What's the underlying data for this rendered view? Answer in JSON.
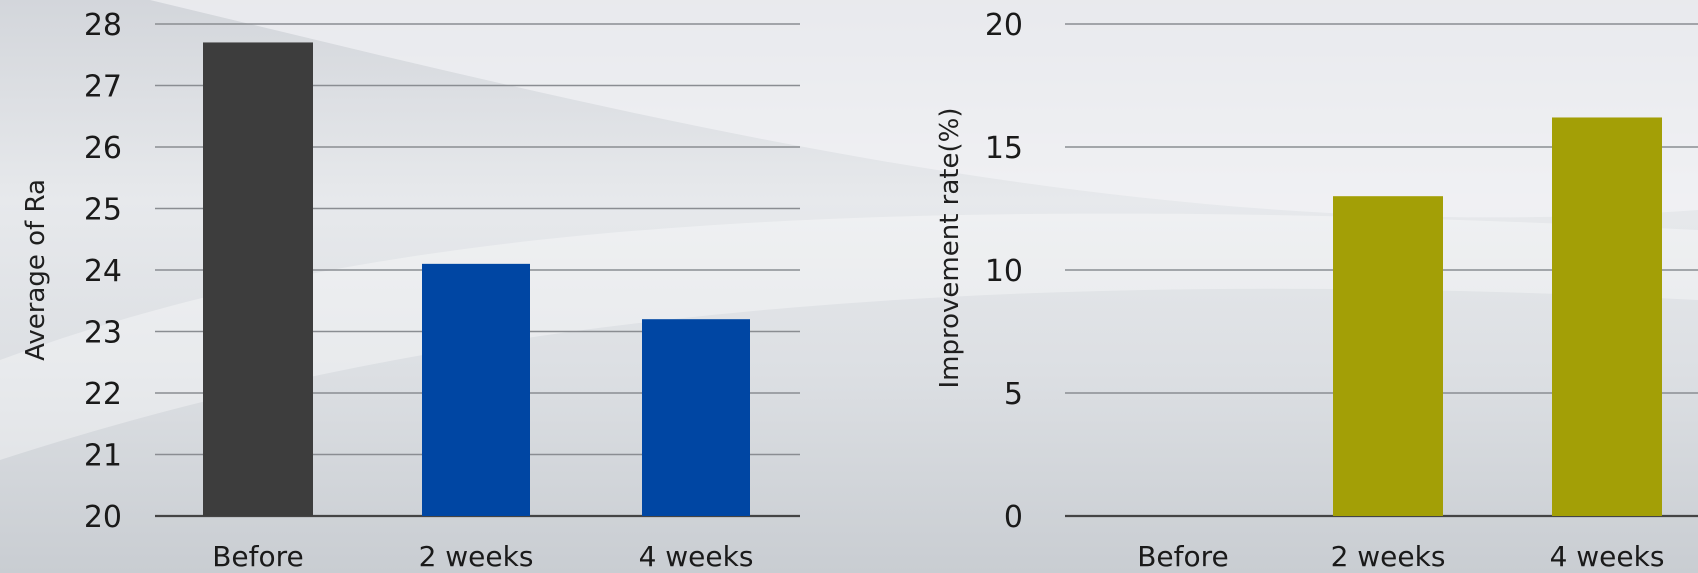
{
  "chart_data": [
    {
      "type": "bar",
      "title": "",
      "xlabel": "",
      "ylabel": "Average of Ra",
      "categories": [
        "Before",
        "2 weeks",
        "4 weeks"
      ],
      "values": [
        27.7,
        24.1,
        23.2
      ],
      "colors": [
        "#3d3d3d",
        "#0046a3",
        "#0046a3"
      ],
      "ylim": [
        20,
        28
      ],
      "yticks": [
        20,
        21,
        22,
        23,
        24,
        25,
        26,
        27,
        28
      ],
      "grid": true,
      "legend": "none"
    },
    {
      "type": "bar",
      "title": "",
      "xlabel": "",
      "ylabel": "Improvement rate(%)",
      "categories": [
        "Before",
        "2 weeks",
        "4 weeks"
      ],
      "values": [
        0,
        13.0,
        16.2
      ],
      "colors": [
        "#a39f06",
        "#a39f06",
        "#a39f06"
      ],
      "ylim": [
        0,
        20
      ],
      "yticks": [
        0,
        5,
        10,
        15,
        20
      ],
      "grid": true,
      "legend": "none"
    }
  ]
}
